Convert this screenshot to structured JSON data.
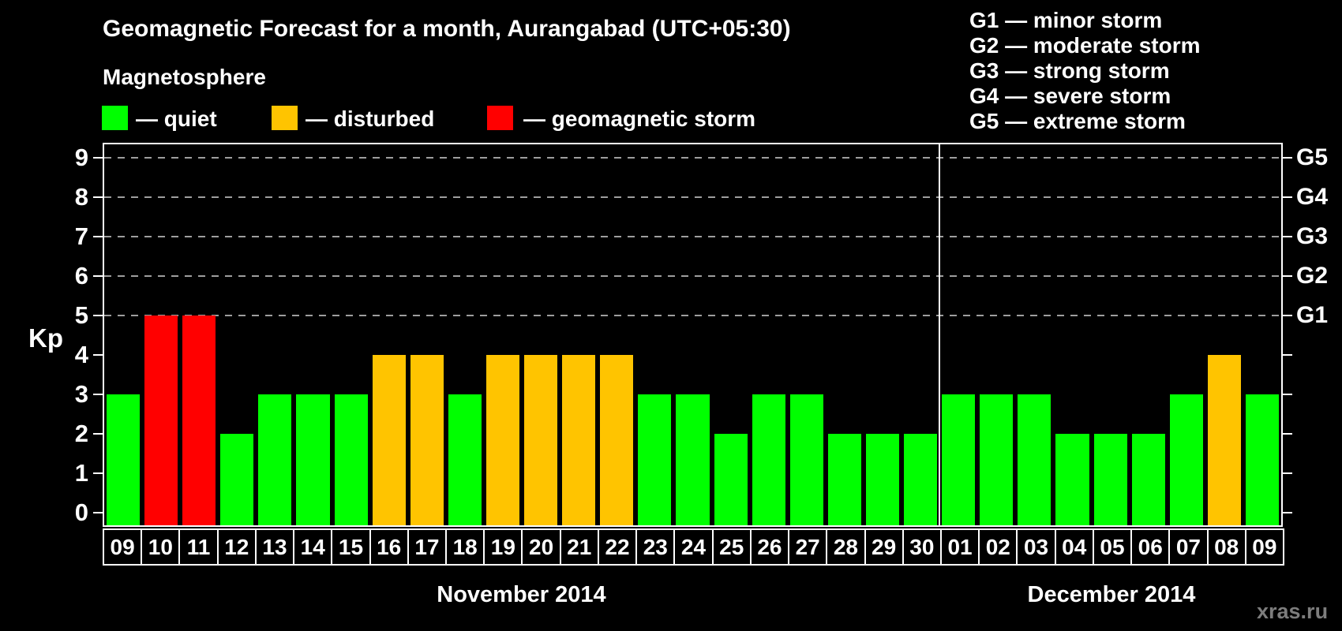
{
  "title": "Geomagnetic Forecast for a month, Aurangabad (UTC+05:30)",
  "subtitle": "Magnetosphere",
  "legend": {
    "quiet": "— quiet",
    "disturbed": "— disturbed",
    "storm": "— geomagnetic storm"
  },
  "g_legend": [
    "G1 — minor storm",
    "G2 — moderate storm",
    "G3 — strong storm",
    "G4 — severe storm",
    "G5 — extreme storm"
  ],
  "axis": {
    "kp_label": "Kp",
    "y_ticks": [
      0,
      1,
      2,
      3,
      4,
      5,
      6,
      7,
      8,
      9
    ]
  },
  "watermark": "xras.ru",
  "chart_data": {
    "type": "bar",
    "title": "Geomagnetic Forecast for a month, Aurangabad (UTC+05:30)",
    "xlabel": "",
    "ylabel": "Kp",
    "ylim": [
      0,
      9.3
    ],
    "grid": "dashed horizontal lines at Kp 5-9 only",
    "legend_position": "top-left",
    "colors": {
      "quiet": "#00ff00",
      "disturbed": "#ffc400",
      "storm": "#ff0000",
      "grid": "#9e9e9e"
    },
    "right_axis": [
      {
        "kp": 5,
        "label": "G1"
      },
      {
        "kp": 6,
        "label": "G2"
      },
      {
        "kp": 7,
        "label": "G3"
      },
      {
        "kp": 8,
        "label": "G4"
      },
      {
        "kp": 9,
        "label": "G5"
      }
    ],
    "gridlines_at": [
      5,
      6,
      7,
      8,
      9
    ],
    "months": [
      {
        "label": "November 2014",
        "count": 22
      },
      {
        "label": "December 2014",
        "count": 9
      }
    ],
    "bars": [
      {
        "day": "09",
        "kp": 3,
        "status": "quiet"
      },
      {
        "day": "10",
        "kp": 5,
        "status": "storm"
      },
      {
        "day": "11",
        "kp": 5,
        "status": "storm"
      },
      {
        "day": "12",
        "kp": 2,
        "status": "quiet"
      },
      {
        "day": "13",
        "kp": 3,
        "status": "quiet"
      },
      {
        "day": "14",
        "kp": 3,
        "status": "quiet"
      },
      {
        "day": "15",
        "kp": 3,
        "status": "quiet"
      },
      {
        "day": "16",
        "kp": 4,
        "status": "disturbed"
      },
      {
        "day": "17",
        "kp": 4,
        "status": "disturbed"
      },
      {
        "day": "18",
        "kp": 3,
        "status": "quiet"
      },
      {
        "day": "19",
        "kp": 4,
        "status": "disturbed"
      },
      {
        "day": "20",
        "kp": 4,
        "status": "disturbed"
      },
      {
        "day": "21",
        "kp": 4,
        "status": "disturbed"
      },
      {
        "day": "22",
        "kp": 4,
        "status": "disturbed"
      },
      {
        "day": "23",
        "kp": 3,
        "status": "quiet"
      },
      {
        "day": "24",
        "kp": 3,
        "status": "quiet"
      },
      {
        "day": "25",
        "kp": 2,
        "status": "quiet"
      },
      {
        "day": "26",
        "kp": 3,
        "status": "quiet"
      },
      {
        "day": "27",
        "kp": 3,
        "status": "quiet"
      },
      {
        "day": "28",
        "kp": 2,
        "status": "quiet"
      },
      {
        "day": "29",
        "kp": 2,
        "status": "quiet"
      },
      {
        "day": "30",
        "kp": 2,
        "status": "quiet"
      },
      {
        "day": "01",
        "kp": 3,
        "status": "quiet"
      },
      {
        "day": "02",
        "kp": 3,
        "status": "quiet"
      },
      {
        "day": "03",
        "kp": 3,
        "status": "quiet"
      },
      {
        "day": "04",
        "kp": 2,
        "status": "quiet"
      },
      {
        "day": "05",
        "kp": 2,
        "status": "quiet"
      },
      {
        "day": "06",
        "kp": 2,
        "status": "quiet"
      },
      {
        "day": "07",
        "kp": 3,
        "status": "quiet"
      },
      {
        "day": "08",
        "kp": 4,
        "status": "disturbed"
      },
      {
        "day": "09",
        "kp": 3,
        "status": "quiet"
      }
    ]
  }
}
